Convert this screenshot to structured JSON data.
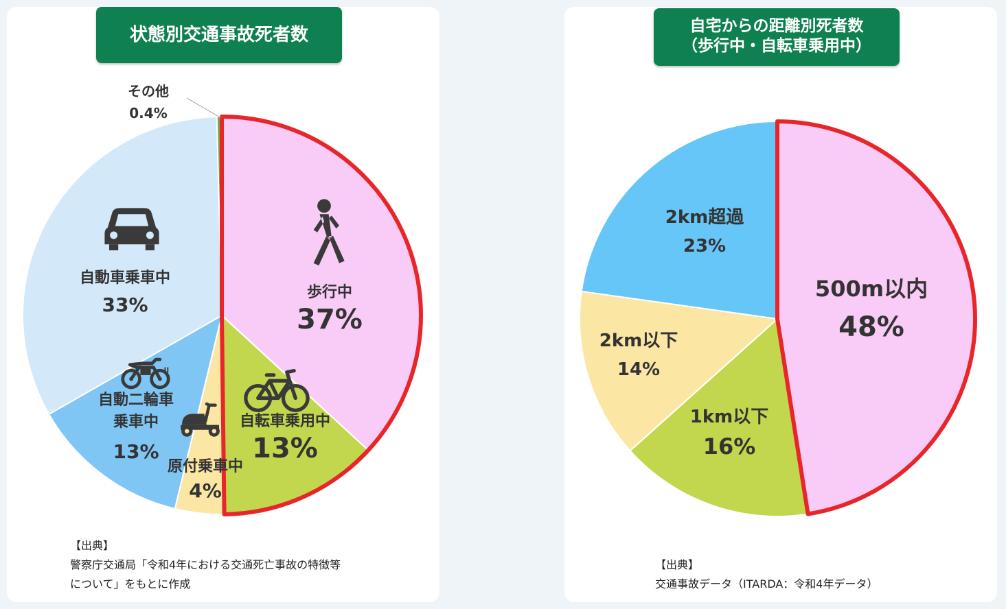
{
  "left_card": {
    "title": "状態別交通事故死者数",
    "source_heading": "【出典】",
    "source_line1": "警察庁交通局「令和4年における交通死亡事故の特徴等",
    "source_line2": "について」をもとに作成"
  },
  "right_card": {
    "title_line1": "自宅からの距離別死者数",
    "title_line2": "（歩行中・自転車乗用中）",
    "source_heading": "【出典】",
    "source_line1": "交通事故データ（ITARDA：令和4年データ）"
  },
  "colors": {
    "pink": "#f9cbf7",
    "green": "#c2d74e",
    "yellow": "#fbe6a3",
    "blue": "#80c6f5",
    "light_blue": "#d3e9fa",
    "sky": "#66c6f7",
    "highlight": "#e8262a",
    "title_green": "#0f8150"
  },
  "chart_data": [
    {
      "type": "pie",
      "title": "状態別交通事故死者数",
      "slices": [
        {
          "label_lines": [
            "歩行中"
          ],
          "value": 37,
          "value_label": "37%",
          "color": "#f9cbf7",
          "icon": "walking-person-icon",
          "highlight": true
        },
        {
          "label_lines": [
            "自転車乗用中"
          ],
          "value": 13,
          "value_label": "13%",
          "color": "#c2d74e",
          "icon": "bicycle-icon",
          "highlight": true
        },
        {
          "label_lines": [
            "原付乗車中"
          ],
          "value": 4,
          "value_label": "4%",
          "color": "#fbe6a3",
          "icon": "scooter-icon",
          "highlight": false
        },
        {
          "label_lines": [
            "自動二輪車",
            "乗車中"
          ],
          "value": 13,
          "value_label": "13%",
          "color": "#80c6f5",
          "icon": "motorcycle-icon",
          "highlight": false
        },
        {
          "label_lines": [
            "自動車乗車中"
          ],
          "value": 33,
          "value_label": "33%",
          "color": "#d3e9fa",
          "icon": "car-icon",
          "highlight": false
        },
        {
          "label_lines": [
            "その他"
          ],
          "value": 0.4,
          "value_label": "0.4%",
          "color": "#7aa84a",
          "icon": "",
          "highlight": false
        }
      ]
    },
    {
      "type": "pie",
      "title": "自宅からの距離別死者数（歩行中・自転車乗用中）",
      "slices": [
        {
          "label_lines": [
            "500m以内"
          ],
          "value": 48,
          "value_label": "48%",
          "color": "#f9cbf7",
          "highlight": true
        },
        {
          "label_lines": [
            "1km以下"
          ],
          "value": 16,
          "value_label": "16%",
          "color": "#c2d74e",
          "highlight": false
        },
        {
          "label_lines": [
            "2km以下"
          ],
          "value": 14,
          "value_label": "14%",
          "color": "#fbe6a3",
          "highlight": false
        },
        {
          "label_lines": [
            "2km超過"
          ],
          "value": 23,
          "value_label": "23%",
          "color": "#66c6f7",
          "highlight": false
        }
      ]
    }
  ]
}
